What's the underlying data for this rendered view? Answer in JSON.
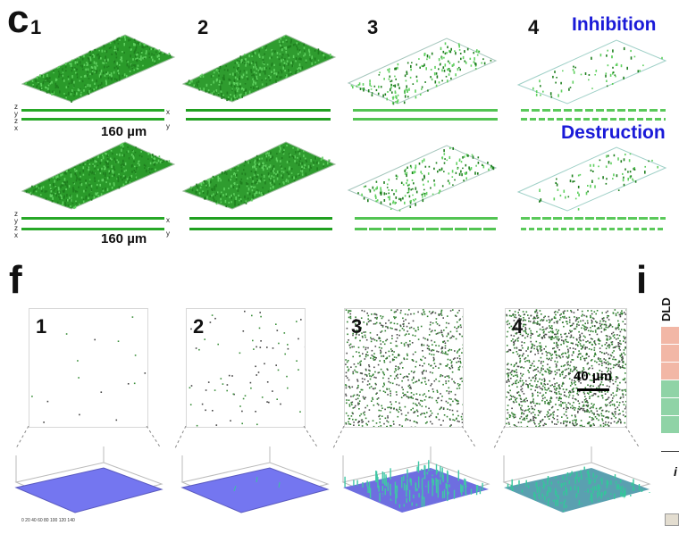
{
  "panel_c": {
    "letter": "c",
    "sub1": "1",
    "sub2": "2",
    "sub3": "3",
    "sub4": "4",
    "inhibition": "Inhibition",
    "destruction": "Destruction",
    "scale_top": "160 µm",
    "scale_bottom": "160 µm",
    "axis_z": "z",
    "axis_y": "y",
    "axis_x": "x"
  },
  "panel_f": {
    "letter": "f",
    "sub1": "1",
    "sub2": "2",
    "sub3": "3",
    "sub4": "4",
    "scale": "40 µm"
  },
  "panel_i": {
    "letter": "i",
    "column_header": "DLD",
    "cell_colors": [
      "#f2b7a6",
      "#f2b7a6",
      "#f2b7a6",
      "#8fd3a6",
      "#8fd3a6",
      "#8fd3a6"
    ],
    "caption_fragment": "i"
  },
  "colors": {
    "biofilm_green": "#2ea12e",
    "surface_blue": "#7b7cf2",
    "title_blue": "#1a1ad8"
  }
}
